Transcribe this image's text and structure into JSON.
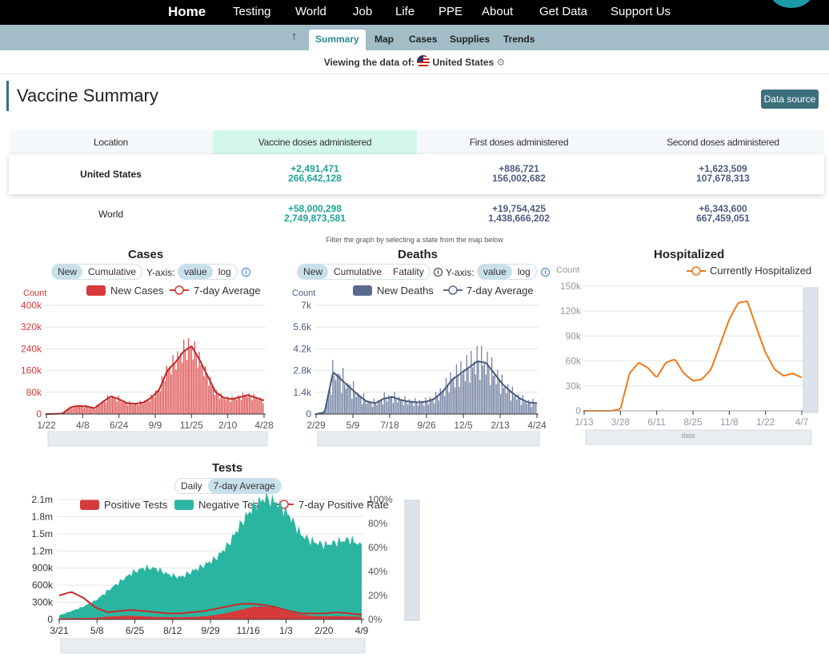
{
  "nav": {
    "items": [
      "Home",
      "Testing",
      "World",
      "Job",
      "Life",
      "PPE",
      "About",
      "Get Data",
      "Support Us"
    ]
  },
  "subnav": {
    "tabs": [
      "Summary",
      "Map",
      "Cases",
      "Supplies",
      "Trends"
    ],
    "active": "Summary"
  },
  "viewing": {
    "label": "Viewing the data of:",
    "country": "United States"
  },
  "page": {
    "title": "Vaccine Summary",
    "data_source": "Data source"
  },
  "table": {
    "headers": [
      "Location",
      "Vaccine doses administered",
      "First doses administered",
      "Second doses administered"
    ],
    "rows": [
      {
        "location": "United States",
        "vaccine_delta": "+2,491,471",
        "vaccine_total": "266,642,128",
        "first_delta": "+886,721",
        "first_total": "156,002,682",
        "second_delta": "+1,623,509",
        "second_total": "107,678,313"
      },
      {
        "location": "World",
        "vaccine_delta": "+58,000,298",
        "vaccine_total": "2,749,873,581",
        "first_delta": "+19,754,425",
        "first_total": "1,438,666,202",
        "second_delta": "+6,343,600",
        "second_total": "667,459,051"
      }
    ]
  },
  "filter_note": "Filter the graph by selecting a state from the map below",
  "controls": {
    "new": "New",
    "cumulative": "Cumulative",
    "fatality": "Fatality",
    "yaxis": "Y-axis:",
    "value": "value",
    "log": "log",
    "daily": "Daily",
    "seven_day": "7-day Average"
  },
  "colors": {
    "cases": "#d63a3a",
    "deaths": "#5a6a8c",
    "hospitalized": "#f07a1a",
    "negative": "#2ab5a0",
    "accent": "#3b6f7c"
  },
  "chart_data": [
    {
      "type": "bar",
      "title": "Cases",
      "ylabel": "Count",
      "legend": [
        "New Cases",
        "7-day Average"
      ],
      "x_ticks": [
        "1/22",
        "4/8",
        "6/24",
        "9/9",
        "11/25",
        "2/10",
        "4/28"
      ],
      "y_ticks": [
        "0",
        "80k",
        "160k",
        "240k",
        "320k",
        "400k"
      ],
      "ylim": [
        0,
        400000
      ],
      "series": [
        {
          "name": "7-day Average",
          "values": [
            0,
            500,
            2000,
            25000,
            30000,
            28000,
            22000,
            45000,
            65000,
            55000,
            40000,
            38000,
            42000,
            60000,
            90000,
            160000,
            190000,
            230000,
            250000,
            200000,
            140000,
            80000,
            60000,
            55000,
            62000,
            70000,
            60000,
            50000
          ]
        }
      ]
    },
    {
      "type": "bar",
      "title": "Deaths",
      "ylabel": "Count",
      "legend": [
        "New Deaths",
        "7-day Average"
      ],
      "x_ticks": [
        "2/29",
        "5/9",
        "7/18",
        "9/26",
        "12/5",
        "2/13",
        "4/24"
      ],
      "y_ticks": [
        "0",
        "1.4k",
        "2.8k",
        "4.2k",
        "5.6k",
        "7k"
      ],
      "ylim": [
        0,
        7000
      ],
      "series": [
        {
          "name": "7-day Average",
          "values": [
            0,
            100,
            2700,
            2200,
            1700,
            1200,
            800,
            700,
            1000,
            1100,
            900,
            800,
            750,
            800,
            1000,
            1500,
            2200,
            2600,
            3000,
            3400,
            3300,
            2600,
            1900,
            1400,
            1000,
            750,
            700
          ]
        }
      ]
    },
    {
      "type": "line",
      "title": "Hospitalized",
      "ylabel": "Count",
      "legend": [
        "Currently Hospitalized"
      ],
      "x_ticks": [
        "1/13",
        "3/28",
        "6/11",
        "8/25",
        "11/8",
        "1/22",
        "4/7"
      ],
      "y_ticks": [
        "0",
        "30k",
        "60k",
        "90k",
        "120k",
        "150k"
      ],
      "ylim": [
        0,
        150000
      ],
      "x_axis_name": "date",
      "series": [
        {
          "name": "Currently Hospitalized",
          "values": [
            0,
            0,
            0,
            0,
            2000,
            45000,
            58000,
            52000,
            40000,
            58000,
            62000,
            45000,
            36000,
            38000,
            50000,
            80000,
            110000,
            130000,
            132000,
            100000,
            70000,
            50000,
            42000,
            45000,
            40000
          ]
        }
      ]
    },
    {
      "type": "bar",
      "title": "Tests",
      "legend": [
        "Positive Tests",
        "Negative Tests",
        "7-day Positive Rate"
      ],
      "x_ticks": [
        "3/21",
        "5/8",
        "6/25",
        "8/12",
        "9/29",
        "11/16",
        "1/3",
        "2/20",
        "4/9"
      ],
      "y_ticks": [
        "0",
        "300k",
        "600k",
        "900k",
        "1.2m",
        "1.5m",
        "1.8m",
        "2.1m"
      ],
      "y2_ticks": [
        "0%",
        "20%",
        "40%",
        "60%",
        "80%",
        "100%"
      ],
      "ylim": [
        0,
        2100000
      ],
      "series": [
        {
          "name": "Negative Tests",
          "values": [
            50000,
            120000,
            200000,
            300000,
            450000,
            600000,
            750000,
            850000,
            850000,
            750000,
            700000,
            800000,
            900000,
            1000000,
            1200000,
            1500000,
            1750000,
            1900000,
            1850000,
            1700000,
            1400000,
            1300000,
            1250000,
            1300000,
            1350000,
            1250000
          ]
        },
        {
          "name": "Positive Tests",
          "values": [
            20000,
            25000,
            25000,
            30000,
            50000,
            60000,
            65000,
            55000,
            45000,
            40000,
            40000,
            45000,
            55000,
            80000,
            120000,
            170000,
            220000,
            230000,
            200000,
            130000,
            80000,
            60000,
            55000,
            60000,
            55000,
            45000
          ]
        },
        {
          "name": "7-day Positive Rate",
          "values": [
            20,
            23,
            18,
            10,
            6,
            7,
            8,
            7,
            6,
            5,
            5,
            6,
            7,
            9,
            11,
            13,
            13,
            12,
            10,
            7,
            5,
            5,
            5,
            6,
            5,
            4
          ]
        }
      ]
    }
  ]
}
